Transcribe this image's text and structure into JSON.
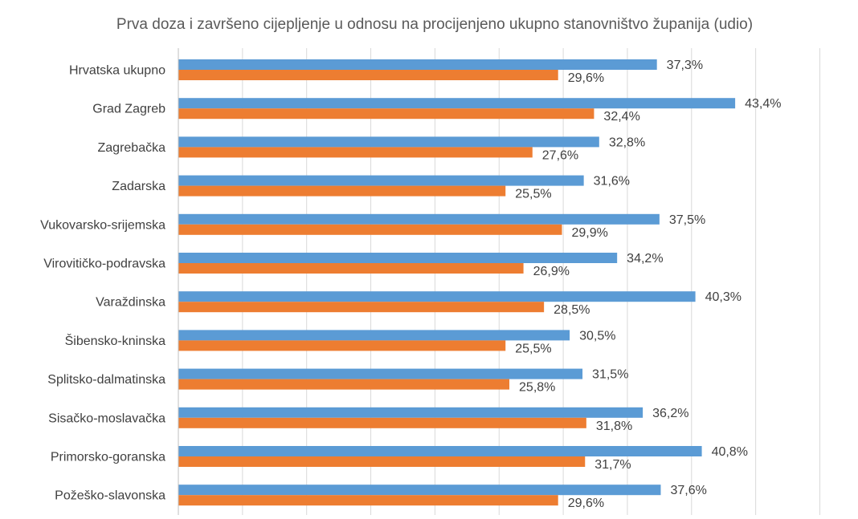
{
  "chart_data": {
    "type": "bar",
    "orientation": "horizontal",
    "title": "Prva doza i završeno cijepljenje u odnosu na procijenjeno ukupno stanovništvo županija (udio)",
    "xlabel": "",
    "ylabel": "",
    "xlim": [
      0,
      50
    ],
    "grid_step": 5,
    "grid": true,
    "legend": "none",
    "value_suffix": "%",
    "categories": [
      "Hrvatska ukupno",
      "Grad Zagreb",
      "Zagrebačka",
      "Zadarska",
      "Vukovarsko-srijemska",
      "Virovitičko-podravska",
      "Varaždinska",
      "Šibensko-kninska",
      "Splitsko-dalmatinska",
      "Sisačko-moslavačka",
      "Primorsko-goranska",
      "Požeško-slavonska"
    ],
    "series": [
      {
        "name": "Prva doza",
        "color": "#5b9bd5",
        "values": [
          37.3,
          43.4,
          32.8,
          31.6,
          37.5,
          34.2,
          40.3,
          30.5,
          31.5,
          36.2,
          40.8,
          37.6
        ],
        "labels": [
          "37,3%",
          "43,4%",
          "32,8%",
          "31,6%",
          "37,5%",
          "34,2%",
          "40,3%",
          "30,5%",
          "31,5%",
          "36,2%",
          "40,8%",
          "37,6%"
        ]
      },
      {
        "name": "Završeno cijepljenje",
        "color": "#ed7d31",
        "values": [
          29.6,
          32.4,
          27.6,
          25.5,
          29.9,
          26.9,
          28.5,
          25.5,
          25.8,
          31.8,
          31.7,
          29.6
        ],
        "labels": [
          "29,6%",
          "32,4%",
          "27,6%",
          "25,5%",
          "29,9%",
          "26,9%",
          "28,5%",
          "25,5%",
          "25,8%",
          "31,8%",
          "31,7%",
          "29,6%"
        ]
      }
    ]
  }
}
